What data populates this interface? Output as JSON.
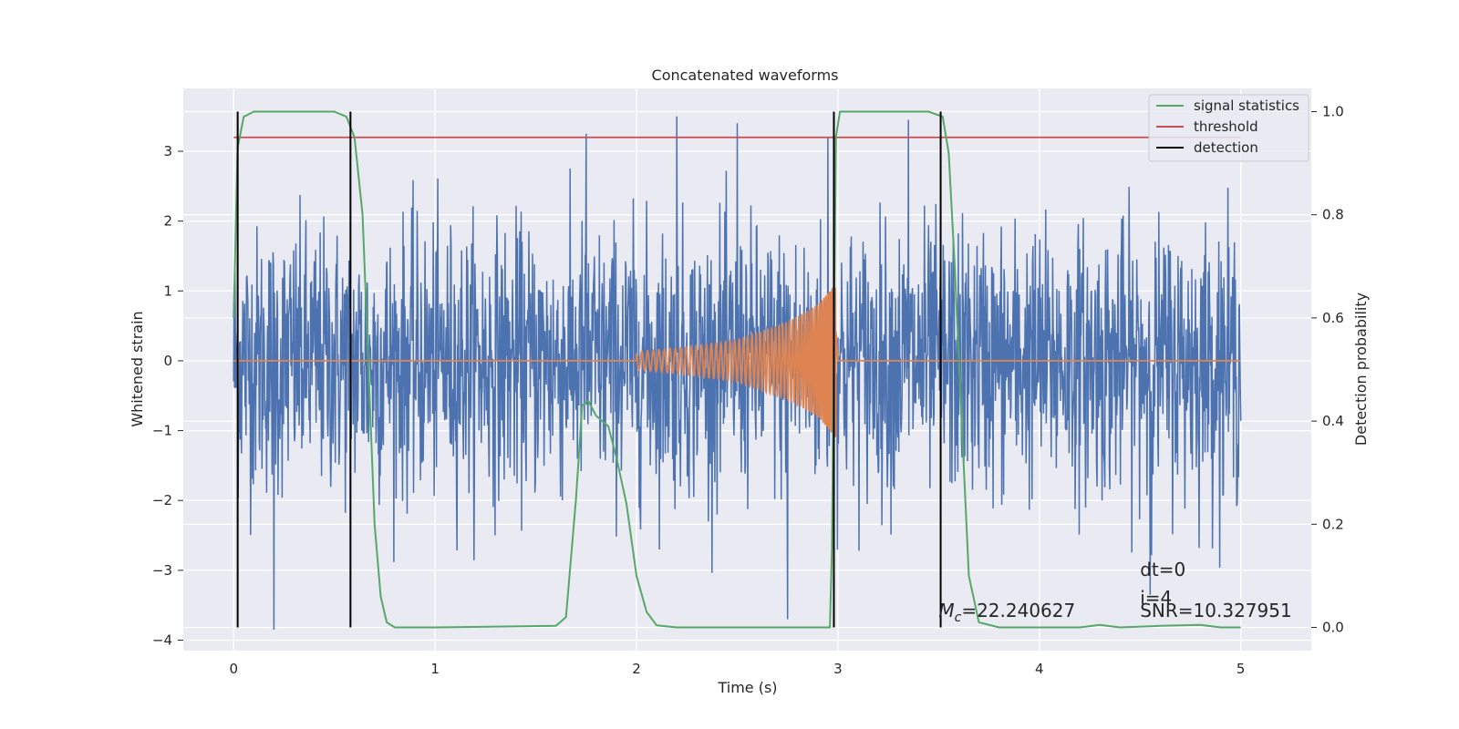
{
  "chart_data": {
    "type": "line",
    "title": "Concatenated waveforms",
    "xlabel": "Time (s)",
    "ylabel_left": "Whitened strain",
    "ylabel_right": "Detection probability",
    "xlim": [
      -0.25,
      5.35
    ],
    "ylim_left": [
      -4.15,
      3.9
    ],
    "ylim_right": [
      -0.045,
      1.045
    ],
    "x_ticks": [
      0,
      1,
      2,
      3,
      4,
      5
    ],
    "x_tick_labels": [
      "0",
      "1",
      "2",
      "3",
      "4",
      "5"
    ],
    "y_left_ticks": [
      -4,
      -3,
      -2,
      -1,
      0,
      1,
      2,
      3
    ],
    "y_left_tick_labels": [
      "−4",
      "−3",
      "−2",
      "−1",
      "0",
      "1",
      "2",
      "3"
    ],
    "y_right_ticks": [
      0.0,
      0.2,
      0.4,
      0.6,
      0.8,
      1.0
    ],
    "y_right_tick_labels": [
      "0.0",
      "0.2",
      "0.4",
      "0.6",
      "0.8",
      "1.0"
    ],
    "grid": true,
    "legend_position": "top-right",
    "legend": [
      "signal statistics",
      "threshold",
      "detection"
    ],
    "colors": {
      "background": "#eaeaf2",
      "grid": "#ffffff",
      "strain": "#4c72b0",
      "template": "#dd8452",
      "signal_statistics": "#55a868",
      "threshold": "#c44e52",
      "detection": "#000000"
    },
    "series": [
      {
        "name": "strain (noisy)",
        "axis": "left",
        "color": "#4c72b0",
        "x_range": [
          0,
          5
        ],
        "amplitude_envelope": [
          -2.7,
          2.5
        ],
        "notable_peaks": [
          {
            "x": 0.2,
            "y": -3.85
          },
          {
            "x": 1.75,
            "y": 3.25
          },
          {
            "x": 2.2,
            "y": 3.5
          },
          {
            "x": 2.5,
            "y": 3.4
          },
          {
            "x": 2.75,
            "y": -3.7
          },
          {
            "x": 2.95,
            "y": 3.2
          },
          {
            "x": 3.35,
            "y": 3.45
          },
          {
            "x": 4.55,
            "y": -3.35
          }
        ]
      },
      {
        "name": "injected waveform",
        "axis": "left",
        "color": "#dd8452",
        "x": [
          0.0,
          2.0,
          2.25,
          2.5,
          2.75,
          2.9,
          2.99,
          3.0,
          5.0
        ],
        "amplitude": [
          0.0,
          0.13,
          0.2,
          0.3,
          0.55,
          0.8,
          1.1,
          0.0,
          0.0
        ]
      },
      {
        "name": "signal statistics",
        "axis": "right",
        "color": "#55a868",
        "x": [
          0.0,
          0.02,
          0.05,
          0.1,
          0.5,
          0.56,
          0.6,
          0.64,
          0.67,
          0.7,
          0.73,
          0.76,
          0.8,
          1.0,
          1.6,
          1.65,
          1.7,
          1.73,
          1.76,
          1.8,
          1.86,
          1.9,
          1.95,
          2.0,
          2.05,
          2.1,
          2.2,
          2.96,
          2.97,
          2.99,
          3.01,
          3.05,
          3.45,
          3.52,
          3.55,
          3.58,
          3.62,
          3.65,
          3.7,
          3.8,
          4.2,
          4.3,
          4.4,
          4.6,
          4.8,
          4.9,
          5.0
        ],
        "y": [
          0.6,
          0.93,
          0.99,
          1.0,
          1.0,
          0.99,
          0.95,
          0.8,
          0.5,
          0.2,
          0.06,
          0.01,
          0.0,
          0.0,
          0.003,
          0.02,
          0.25,
          0.43,
          0.44,
          0.41,
          0.39,
          0.33,
          0.24,
          0.1,
          0.03,
          0.004,
          0.0,
          0.0,
          0.15,
          0.95,
          1.0,
          1.0,
          1.0,
          0.99,
          0.92,
          0.7,
          0.35,
          0.1,
          0.01,
          0.0,
          0.0,
          0.005,
          0.0,
          0.003,
          0.005,
          0.0,
          0.0
        ]
      },
      {
        "name": "threshold",
        "axis": "right",
        "color": "#c44e52",
        "x": [
          0.0,
          5.0
        ],
        "y": [
          0.95,
          0.95
        ]
      }
    ],
    "detections_x": [
      0.02,
      0.58,
      2.98,
      3.51
    ],
    "detection_y_range": [
      0.0,
      1.0
    ],
    "annotations": [
      {
        "text_parts": [
          "M",
          "c",
          "=22.240627"
        ],
        "x": 3.5,
        "y_right": 0.02
      },
      {
        "text": "dt=0",
        "x": 4.5,
        "y_right": 0.1
      },
      {
        "text": "i=4",
        "x": 4.5,
        "y_right": 0.045
      },
      {
        "text": "SNR=10.327951",
        "x": 4.5,
        "y_right": 0.02
      }
    ]
  }
}
